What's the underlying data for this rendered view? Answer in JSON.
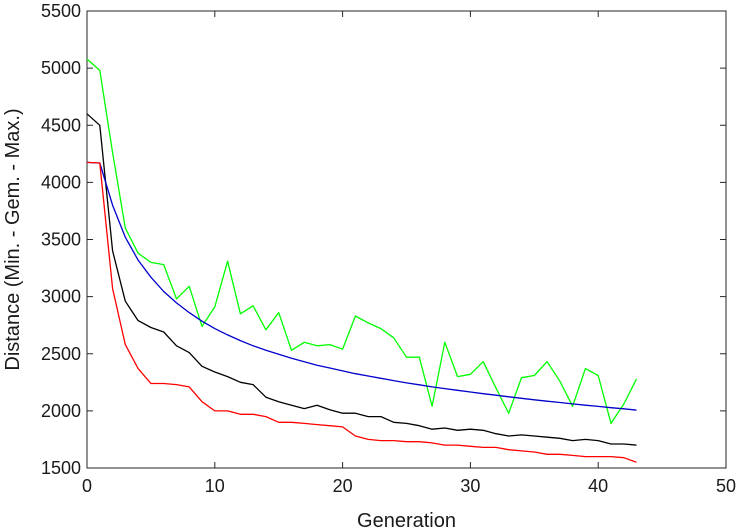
{
  "chart_data": {
    "type": "line",
    "title": "",
    "xlabel": "Generation",
    "ylabel": "Distance (Min. - Gem. - Max.)",
    "xlim": [
      0,
      50
    ],
    "ylim": [
      1500,
      5500
    ],
    "xticks": [
      0,
      10,
      20,
      30,
      40,
      50
    ],
    "yticks": [
      1500,
      2000,
      2500,
      3000,
      3500,
      4000,
      4500,
      5000,
      5500
    ],
    "grid": false,
    "legend": "none",
    "x": [
      0,
      1,
      2,
      3,
      4,
      5,
      6,
      7,
      8,
      9,
      10,
      11,
      12,
      13,
      14,
      15,
      16,
      17,
      18,
      19,
      20,
      21,
      22,
      23,
      24,
      25,
      26,
      27,
      28,
      29,
      30,
      31,
      32,
      33,
      34,
      35,
      36,
      37,
      38,
      39,
      40,
      41,
      42,
      43
    ],
    "series": [
      {
        "color": "#00ff00",
        "values": [
          5080,
          4980,
          4260,
          3600,
          3380,
          3300,
          3280,
          2980,
          3090,
          2740,
          2910,
          3310,
          2850,
          2920,
          2710,
          2860,
          2530,
          2600,
          2570,
          2580,
          2540,
          2830,
          2770,
          2720,
          2640,
          2470,
          2470,
          2040,
          2600,
          2300,
          2320,
          2430,
          2200,
          1980,
          2290,
          2310,
          2430,
          2260,
          2040,
          2370,
          2310,
          1890,
          2060,
          2280
        ]
      },
      {
        "color": "#000000",
        "values": [
          4600,
          4500,
          3400,
          2960,
          2790,
          2730,
          2690,
          2570,
          2510,
          2390,
          2340,
          2300,
          2250,
          2230,
          2120,
          2080,
          2050,
          2020,
          2050,
          2010,
          1980,
          1980,
          1950,
          1950,
          1900,
          1890,
          1870,
          1840,
          1850,
          1830,
          1840,
          1830,
          1800,
          1780,
          1790,
          1780,
          1770,
          1760,
          1740,
          1750,
          1740,
          1710,
          1710,
          1700
        ]
      },
      {
        "color": "#0000cc",
        "values": [
          4175,
          4170,
          3800,
          3520,
          3320,
          3170,
          3045,
          2945,
          2860,
          2785,
          2720,
          2665,
          2615,
          2570,
          2530,
          2495,
          2460,
          2430,
          2400,
          2375,
          2350,
          2325,
          2305,
          2285,
          2265,
          2245,
          2228,
          2210,
          2195,
          2180,
          2165,
          2150,
          2137,
          2123,
          2110,
          2097,
          2085,
          2073,
          2061,
          2050,
          2039,
          2028,
          2018,
          2007
        ]
      },
      {
        "color": "#ff0000",
        "values": [
          4175,
          4170,
          3070,
          2580,
          2370,
          2240,
          2240,
          2230,
          2210,
          2080,
          2000,
          2000,
          1970,
          1970,
          1950,
          1900,
          1900,
          1890,
          1880,
          1870,
          1860,
          1780,
          1750,
          1740,
          1740,
          1730,
          1730,
          1720,
          1700,
          1700,
          1690,
          1680,
          1680,
          1660,
          1650,
          1640,
          1620,
          1620,
          1610,
          1600,
          1600,
          1600,
          1590,
          1550
        ]
      }
    ]
  }
}
